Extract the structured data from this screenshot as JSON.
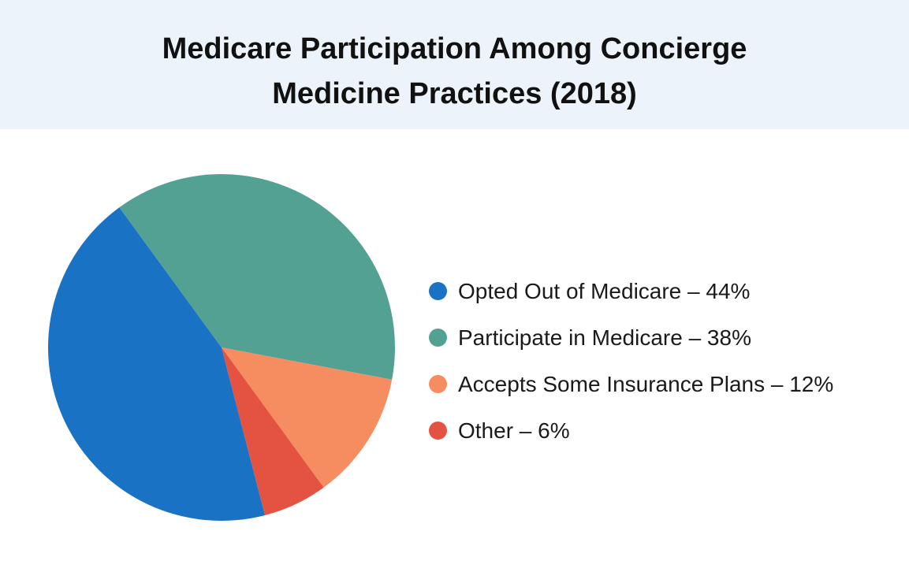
{
  "title_lines": [
    "Medicare Participation Among Concierge",
    "Medicine Practices (2018)"
  ],
  "chart_data": {
    "type": "pie",
    "title": "Medicare Participation Among Concierge Medicine Practices (2018)",
    "unit": "%",
    "slices": [
      {
        "label": "Opted Out of Medicare",
        "value": 44,
        "color": "#1a72c4",
        "legend": "Opted Out of Medicare –  44%"
      },
      {
        "label": "Participate in Medicare",
        "value": 38,
        "color": "#52a193",
        "legend": "Participate in Medicare –  38%"
      },
      {
        "label": "Accepts Some Insurance Plans",
        "value": 12,
        "color": "#f58d60",
        "legend": "Accepts Some Insurance Plans – 12%"
      },
      {
        "label": "Other",
        "value": 6,
        "color": "#e45241",
        "legend": "Other – 6%"
      }
    ],
    "legend_position": "right"
  }
}
